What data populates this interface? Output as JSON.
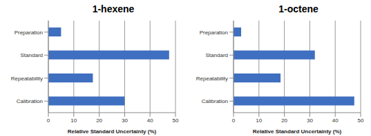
{
  "chart_data": [
    {
      "type": "bar",
      "title": "1-hexene",
      "orientation": "horizontal",
      "categories": [
        "Preparation",
        "Standard",
        "Repeatability",
        "Calibration"
      ],
      "values": [
        5,
        47.5,
        17.5,
        30
      ],
      "color": "#3f6fc0",
      "x_label": "Relative Standard Uncertainty (%)",
      "xlim": [
        0,
        50
      ],
      "xticks": [
        0,
        10,
        20,
        30,
        40,
        50
      ],
      "grid": true
    },
    {
      "type": "bar",
      "title": "1-octene",
      "orientation": "horizontal",
      "categories": [
        "Preparation",
        "Standard",
        "Repeatability",
        "Calibration"
      ],
      "values": [
        3,
        32,
        18.5,
        47.5
      ],
      "color": "#3f6fc0",
      "x_label": "Relative Standard Uncertainty (%)",
      "xlim": [
        0,
        50
      ],
      "xticks": [
        0,
        10,
        20,
        30,
        40,
        50
      ],
      "grid": true
    }
  ]
}
